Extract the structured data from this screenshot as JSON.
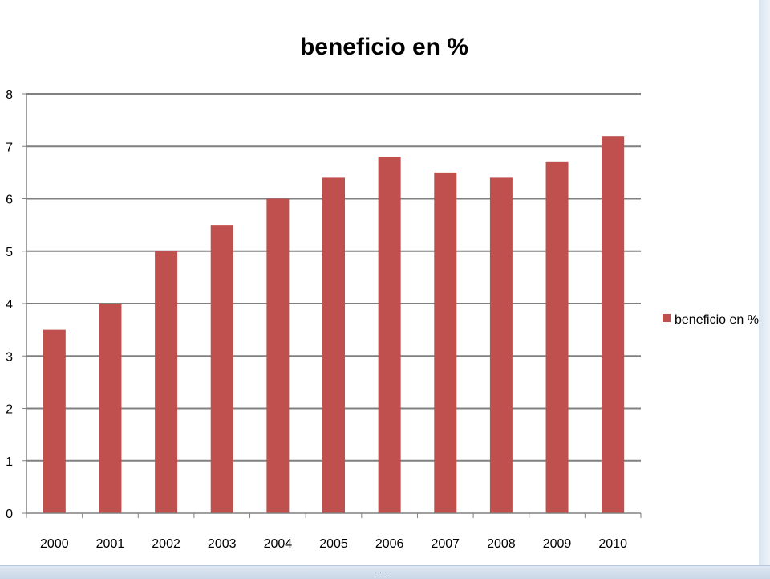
{
  "chart_data": {
    "type": "bar",
    "title": "beneficio en %",
    "xlabel": "",
    "ylabel": "",
    "categories": [
      "2000",
      "2001",
      "2002",
      "2003",
      "2004",
      "2005",
      "2006",
      "2007",
      "2008",
      "2009",
      "2010"
    ],
    "series": [
      {
        "name": "beneficio en %",
        "color": "#c0504d",
        "values": [
          3.5,
          4.0,
          5.0,
          5.5,
          6.0,
          6.4,
          6.8,
          6.5,
          6.4,
          6.7,
          7.2
        ]
      }
    ],
    "ylim": [
      0,
      8
    ],
    "yticks": [
      "0",
      "1",
      "2",
      "3",
      "4",
      "5",
      "6",
      "7",
      "8"
    ],
    "grid": true,
    "legend_position": "right"
  },
  "window": {
    "grip": "...."
  }
}
